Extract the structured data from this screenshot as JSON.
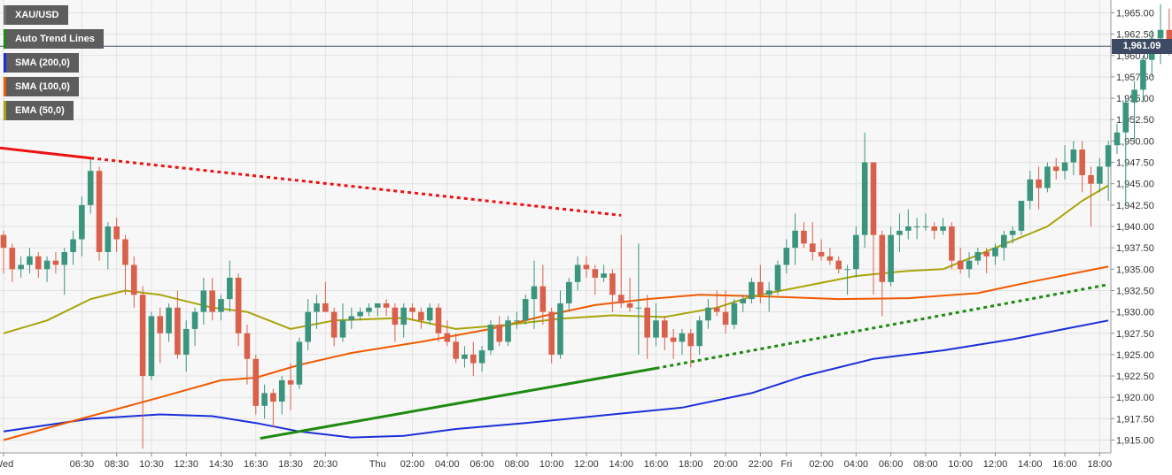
{
  "chart_data": {
    "type": "candlestick",
    "symbol": "XAU/USD",
    "current_price": "1,961.09",
    "ylim": [
      1913.5,
      1966.5
    ],
    "y_ticks": [
      "1,915.00",
      "1,917.50",
      "1,920.00",
      "1,922.50",
      "1,925.00",
      "1,927.50",
      "1,930.00",
      "1,932.50",
      "1,935.00",
      "1,937.50",
      "1,940.00",
      "1,942.50",
      "1,945.00",
      "1,947.50",
      "1,950.00",
      "1,952.50",
      "1,955.00",
      "1,957.50",
      "1,960.00",
      "1,962.50",
      "1,965.00"
    ],
    "x_ticks": [
      {
        "label": "Wed",
        "bar": 0
      },
      {
        "label": "06:30",
        "bar": 9
      },
      {
        "label": "08:30",
        "bar": 13
      },
      {
        "label": "10:30",
        "bar": 17
      },
      {
        "label": "12:30",
        "bar": 21
      },
      {
        "label": "14:30",
        "bar": 25
      },
      {
        "label": "16:30",
        "bar": 29
      },
      {
        "label": "18:30",
        "bar": 33
      },
      {
        "label": "20:30",
        "bar": 37
      },
      {
        "label": "Thu",
        "bar": 43
      },
      {
        "label": "02:00",
        "bar": 47
      },
      {
        "label": "04:00",
        "bar": 51
      },
      {
        "label": "06:00",
        "bar": 55
      },
      {
        "label": "08:00",
        "bar": 59
      },
      {
        "label": "10:00",
        "bar": 63
      },
      {
        "label": "12:00",
        "bar": 67
      },
      {
        "label": "14:00",
        "bar": 71
      },
      {
        "label": "16:00",
        "bar": 75
      },
      {
        "label": "18:00",
        "bar": 79
      },
      {
        "label": "20:00",
        "bar": 83
      },
      {
        "label": "22:00",
        "bar": 87
      },
      {
        "label": "Fri",
        "bar": 90
      },
      {
        "label": "02:00",
        "bar": 94
      },
      {
        "label": "04:00",
        "bar": 98
      },
      {
        "label": "06:00",
        "bar": 102
      },
      {
        "label": "08:00",
        "bar": 106
      },
      {
        "label": "10:00",
        "bar": 110
      },
      {
        "label": "12:00",
        "bar": 114
      },
      {
        "label": "14:00",
        "bar": 118
      },
      {
        "label": "16:00",
        "bar": 122
      },
      {
        "label": "18:00",
        "bar": 126
      }
    ],
    "candles": [
      [
        1939.0,
        1939.5,
        1934.5,
        1937.5
      ],
      [
        1937.5,
        1938.0,
        1933.5,
        1935.0
      ],
      [
        1935.0,
        1936.5,
        1934.0,
        1935.5
      ],
      [
        1935.5,
        1937.5,
        1934.5,
        1936.5
      ],
      [
        1936.5,
        1937.0,
        1934.0,
        1935.0
      ],
      [
        1935.0,
        1936.5,
        1933.5,
        1936.0
      ],
      [
        1936.0,
        1937.0,
        1934.5,
        1935.5
      ],
      [
        1935.5,
        1937.5,
        1932.0,
        1937.0
      ],
      [
        1937.0,
        1939.5,
        1935.5,
        1938.5
      ],
      [
        1938.5,
        1943.5,
        1936.5,
        1942.5
      ],
      [
        1942.5,
        1948.0,
        1941.5,
        1946.5
      ],
      [
        1946.5,
        1947.0,
        1936.0,
        1937.0
      ],
      [
        1937.0,
        1940.5,
        1935.0,
        1940.0
      ],
      [
        1940.0,
        1941.0,
        1937.0,
        1938.5
      ],
      [
        1938.5,
        1939.0,
        1932.0,
        1935.5
      ],
      [
        1935.5,
        1936.5,
        1930.5,
        1932.0
      ],
      [
        1932.0,
        1933.0,
        1914.0,
        1922.5
      ],
      [
        1922.5,
        1930.0,
        1922.0,
        1929.5
      ],
      [
        1929.5,
        1930.5,
        1924.0,
        1927.5
      ],
      [
        1927.5,
        1931.0,
        1926.5,
        1930.5
      ],
      [
        1930.5,
        1932.5,
        1924.5,
        1925.0
      ],
      [
        1925.0,
        1929.0,
        1923.0,
        1928.0
      ],
      [
        1928.0,
        1930.5,
        1926.0,
        1930.0
      ],
      [
        1930.0,
        1934.0,
        1928.5,
        1932.5
      ],
      [
        1932.5,
        1934.0,
        1929.0,
        1930.0
      ],
      [
        1930.0,
        1932.0,
        1929.0,
        1931.5
      ],
      [
        1931.5,
        1936.0,
        1930.0,
        1934.0
      ],
      [
        1934.0,
        1934.5,
        1926.0,
        1927.5
      ],
      [
        1927.5,
        1928.5,
        1921.5,
        1924.5
      ],
      [
        1924.5,
        1925.0,
        1918.0,
        1919.0
      ],
      [
        1919.0,
        1921.5,
        1917.5,
        1920.5
      ],
      [
        1920.5,
        1921.0,
        1916.5,
        1919.5
      ],
      [
        1919.5,
        1922.5,
        1918.0,
        1922.0
      ],
      [
        1922.0,
        1924.0,
        1918.5,
        1921.5
      ],
      [
        1921.5,
        1927.0,
        1921.0,
        1926.5
      ],
      [
        1926.5,
        1931.5,
        1925.5,
        1930.0
      ],
      [
        1930.0,
        1932.0,
        1928.0,
        1931.0
      ],
      [
        1931.0,
        1933.5,
        1930.0,
        1930.0
      ],
      [
        1930.0,
        1930.5,
        1926.0,
        1927.0
      ],
      [
        1927.0,
        1931.0,
        1926.5,
        1929.0
      ],
      [
        1929.0,
        1930.5,
        1928.0,
        1929.5
      ],
      [
        1929.5,
        1930.5,
        1929.0,
        1930.0
      ],
      [
        1930.0,
        1931.0,
        1929.5,
        1930.5
      ],
      [
        1930.5,
        1931.0,
        1929.5,
        1931.0
      ],
      [
        1931.0,
        1931.5,
        1929.5,
        1930.5
      ],
      [
        1930.5,
        1931.0,
        1926.5,
        1928.5
      ],
      [
        1928.5,
        1931.0,
        1927.0,
        1930.5
      ],
      [
        1930.5,
        1931.0,
        1929.0,
        1930.0
      ],
      [
        1930.0,
        1930.5,
        1928.0,
        1929.0
      ],
      [
        1929.0,
        1931.0,
        1928.5,
        1930.5
      ],
      [
        1930.5,
        1931.0,
        1926.5,
        1927.5
      ],
      [
        1927.5,
        1929.0,
        1926.0,
        1926.5
      ],
      [
        1926.5,
        1927.5,
        1924.0,
        1924.5
      ],
      [
        1924.5,
        1926.0,
        1923.5,
        1925.0
      ],
      [
        1925.0,
        1926.5,
        1922.5,
        1924.0
      ],
      [
        1924.0,
        1926.0,
        1923.0,
        1925.5
      ],
      [
        1925.5,
        1929.0,
        1925.0,
        1928.5
      ],
      [
        1928.5,
        1929.5,
        1926.0,
        1926.5
      ],
      [
        1926.5,
        1929.5,
        1926.0,
        1929.0
      ],
      [
        1929.0,
        1930.0,
        1928.0,
        1929.0
      ],
      [
        1929.0,
        1932.0,
        1928.5,
        1931.5
      ],
      [
        1931.5,
        1936.0,
        1928.0,
        1933.0
      ],
      [
        1933.0,
        1935.5,
        1928.5,
        1930.0
      ],
      [
        1930.0,
        1930.5,
        1924.0,
        1925.0
      ],
      [
        1925.0,
        1932.5,
        1924.5,
        1931.0
      ],
      [
        1931.0,
        1934.0,
        1930.0,
        1933.5
      ],
      [
        1933.5,
        1936.5,
        1932.5,
        1935.5
      ],
      [
        1935.5,
        1936.5,
        1934.0,
        1935.0
      ],
      [
        1935.0,
        1935.5,
        1932.0,
        1934.0
      ],
      [
        1934.0,
        1935.5,
        1933.5,
        1934.5
      ],
      [
        1934.5,
        1935.0,
        1930.0,
        1932.0
      ],
      [
        1932.0,
        1939.0,
        1930.5,
        1931.0
      ],
      [
        1931.0,
        1934.0,
        1930.0,
        1930.5
      ],
      [
        1930.5,
        1938.0,
        1925.0,
        1930.5
      ],
      [
        1930.5,
        1932.0,
        1924.5,
        1927.0
      ],
      [
        1927.0,
        1931.0,
        1926.0,
        1929.0
      ],
      [
        1929.0,
        1929.5,
        1925.5,
        1927.0
      ],
      [
        1927.0,
        1928.0,
        1924.5,
        1926.5
      ],
      [
        1926.5,
        1928.0,
        1925.0,
        1927.5
      ],
      [
        1927.5,
        1928.0,
        1923.5,
        1926.0
      ],
      [
        1926.0,
        1929.5,
        1925.0,
        1929.0
      ],
      [
        1929.0,
        1931.5,
        1928.0,
        1930.5
      ],
      [
        1930.5,
        1932.5,
        1929.5,
        1930.0
      ],
      [
        1930.0,
        1932.5,
        1927.5,
        1928.5
      ],
      [
        1928.5,
        1931.5,
        1928.0,
        1931.0
      ],
      [
        1931.0,
        1932.0,
        1930.0,
        1931.5
      ],
      [
        1931.5,
        1934.0,
        1931.0,
        1933.5
      ],
      [
        1933.5,
        1935.5,
        1931.0,
        1932.0
      ],
      [
        1932.0,
        1933.5,
        1930.0,
        1932.5
      ],
      [
        1932.5,
        1936.0,
        1932.0,
        1935.5
      ],
      [
        1935.5,
        1938.5,
        1934.5,
        1937.5
      ],
      [
        1937.5,
        1941.5,
        1935.5,
        1939.5
      ],
      [
        1939.5,
        1940.5,
        1937.5,
        1938.0
      ],
      [
        1938.0,
        1940.5,
        1936.0,
        1937.0
      ],
      [
        1937.0,
        1938.5,
        1936.0,
        1936.5
      ],
      [
        1936.5,
        1937.5,
        1935.5,
        1936.0
      ],
      [
        1936.0,
        1936.5,
        1934.5,
        1935.0
      ],
      [
        1935.0,
        1935.5,
        1932.0,
        1935.0
      ],
      [
        1935.0,
        1940.0,
        1934.0,
        1939.0
      ],
      [
        1939.0,
        1951.0,
        1937.5,
        1947.5
      ],
      [
        1947.5,
        1947.5,
        1932.0,
        1939.0
      ],
      [
        1939.0,
        1939.5,
        1929.5,
        1933.5
      ],
      [
        1933.5,
        1940.0,
        1933.0,
        1939.0
      ],
      [
        1939.0,
        1941.5,
        1937.0,
        1939.5
      ],
      [
        1939.5,
        1942.0,
        1938.5,
        1940.0
      ],
      [
        1940.0,
        1941.0,
        1938.5,
        1940.0
      ],
      [
        1940.0,
        1941.5,
        1939.5,
        1940.0
      ],
      [
        1940.0,
        1940.5,
        1938.5,
        1939.5
      ],
      [
        1939.5,
        1941.0,
        1939.0,
        1940.0
      ],
      [
        1940.0,
        1940.5,
        1935.0,
        1936.0
      ],
      [
        1936.0,
        1937.5,
        1934.5,
        1935.0
      ],
      [
        1935.0,
        1937.0,
        1934.0,
        1936.0
      ],
      [
        1936.0,
        1937.5,
        1935.5,
        1937.0
      ],
      [
        1937.0,
        1937.5,
        1934.5,
        1936.5
      ],
      [
        1936.5,
        1938.0,
        1935.5,
        1937.5
      ],
      [
        1937.5,
        1939.5,
        1936.0,
        1939.0
      ],
      [
        1939.0,
        1940.0,
        1938.0,
        1939.5
      ],
      [
        1939.5,
        1943.0,
        1939.0,
        1943.0
      ],
      [
        1943.0,
        1946.5,
        1942.0,
        1945.5
      ],
      [
        1945.5,
        1947.0,
        1942.0,
        1944.5
      ],
      [
        1944.5,
        1947.5,
        1944.0,
        1947.0
      ],
      [
        1947.0,
        1948.0,
        1945.5,
        1946.5
      ],
      [
        1946.5,
        1949.5,
        1945.5,
        1947.5
      ],
      [
        1947.5,
        1950.0,
        1946.0,
        1949.0
      ],
      [
        1949.0,
        1950.0,
        1944.0,
        1946.0
      ],
      [
        1946.0,
        1947.0,
        1940.0,
        1945.0
      ],
      [
        1945.0,
        1948.0,
        1944.0,
        1947.0
      ],
      [
        1947.0,
        1950.0,
        1943.0,
        1949.5
      ],
      [
        1949.5,
        1952.0,
        1948.5,
        1951.0
      ],
      [
        1951.0,
        1955.0,
        1942.5,
        1954.5
      ],
      [
        1954.5,
        1957.0,
        1950.0,
        1956.0
      ],
      [
        1956.0,
        1960.0,
        1954.5,
        1959.5
      ],
      [
        1959.5,
        1963.0,
        1957.5,
        1962.0
      ],
      [
        1962.0,
        1966.0,
        1959.0,
        1963.0
      ],
      [
        1963.0,
        1965.5,
        1960.0,
        1961.5
      ],
      [
        1961.5,
        1963.0,
        1960.5,
        1962.0
      ],
      [
        1962.0,
        1964.0,
        1960.5,
        1961.09
      ]
    ],
    "series": [
      {
        "name": "SMA (200,0)",
        "color": "#1a2fd8",
        "points": [
          [
            0,
            1916.0
          ],
          [
            10,
            1917.5
          ],
          [
            18,
            1918.0
          ],
          [
            24,
            1917.8
          ],
          [
            29,
            1917.0
          ],
          [
            34,
            1916.0
          ],
          [
            40,
            1915.3
          ],
          [
            46,
            1915.5
          ],
          [
            52,
            1916.3
          ],
          [
            60,
            1917.0
          ],
          [
            70,
            1918.0
          ],
          [
            78,
            1918.8
          ],
          [
            86,
            1920.5
          ],
          [
            92,
            1922.5
          ],
          [
            100,
            1924.5
          ],
          [
            108,
            1925.5
          ],
          [
            116,
            1926.8
          ],
          [
            122,
            1928.0
          ],
          [
            127,
            1929.0
          ]
        ]
      },
      {
        "name": "SMA (100,0)",
        "color": "#f05a00",
        "points": [
          [
            0,
            1915.0
          ],
          [
            10,
            1917.8
          ],
          [
            18,
            1920.0
          ],
          [
            25,
            1922.0
          ],
          [
            29,
            1922.3
          ],
          [
            34,
            1923.8
          ],
          [
            40,
            1925.2
          ],
          [
            48,
            1926.5
          ],
          [
            56,
            1928.0
          ],
          [
            62,
            1929.5
          ],
          [
            68,
            1930.8
          ],
          [
            74,
            1931.5
          ],
          [
            80,
            1932.0
          ],
          [
            88,
            1931.8
          ],
          [
            96,
            1931.5
          ],
          [
            104,
            1931.6
          ],
          [
            112,
            1932.2
          ],
          [
            118,
            1933.5
          ],
          [
            127,
            1935.3
          ]
        ]
      },
      {
        "name": "EMA (50,0)",
        "color": "#a8a40a",
        "points": [
          [
            0,
            1927.5
          ],
          [
            5,
            1929.0
          ],
          [
            10,
            1931.5
          ],
          [
            14,
            1932.5
          ],
          [
            18,
            1932.0
          ],
          [
            24,
            1930.5
          ],
          [
            28,
            1930.0
          ],
          [
            33,
            1928.0
          ],
          [
            38,
            1929.0
          ],
          [
            46,
            1929.3
          ],
          [
            52,
            1928.0
          ],
          [
            58,
            1928.5
          ],
          [
            64,
            1929.2
          ],
          [
            70,
            1929.6
          ],
          [
            76,
            1929.4
          ],
          [
            82,
            1930.5
          ],
          [
            86,
            1931.8
          ],
          [
            92,
            1933.0
          ],
          [
            98,
            1934.2
          ],
          [
            104,
            1934.8
          ],
          [
            108,
            1935.0
          ],
          [
            114,
            1937.5
          ],
          [
            120,
            1940.0
          ],
          [
            124,
            1943.0
          ],
          [
            127,
            1944.8
          ]
        ]
      }
    ],
    "trend_lines": [
      {
        "color": "#ee1111",
        "solid": [
          [
            -0.5,
            1949.2
          ],
          [
            10,
            1948.0
          ]
        ],
        "dotted": [
          [
            10,
            1948.0
          ],
          [
            71,
            1941.3
          ]
        ]
      },
      {
        "color": "#1d8a10",
        "solid": [
          [
            29.5,
            1915.2
          ],
          [
            75,
            1923.4
          ]
        ],
        "dotted": [
          [
            75,
            1923.4
          ],
          [
            127,
            1933.2
          ]
        ]
      }
    ],
    "grid": true,
    "up_color": "#3b957d",
    "down_color": "#d9604a"
  },
  "legend": [
    {
      "label": "XAU/USD",
      "color": "#5d5d5d"
    },
    {
      "label": "Auto Trend Lines",
      "color": "#1d8a10"
    },
    {
      "label": "SMA (200,0)",
      "color": "#1a2fd8"
    },
    {
      "label": "SMA (100,0)",
      "color": "#f05a00"
    },
    {
      "label": "EMA (50,0)",
      "color": "#a8a40a"
    }
  ]
}
